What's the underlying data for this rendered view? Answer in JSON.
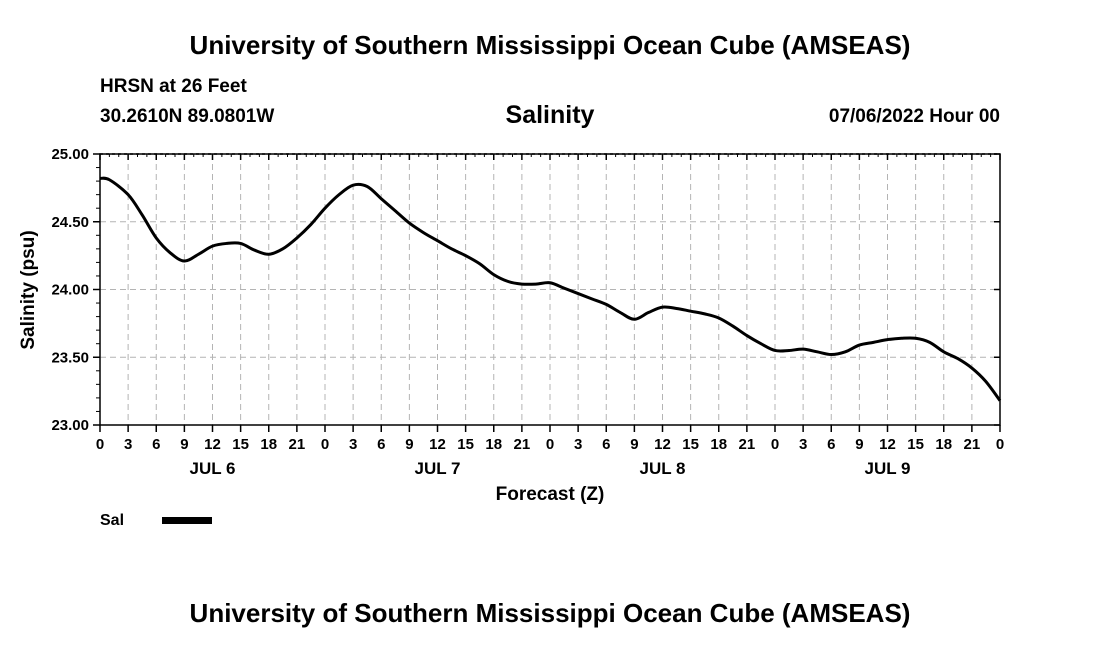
{
  "header": {
    "title": "University of Southern Mississippi Ocean Cube (AMSEAS)",
    "station": "HRSN at 26 Feet",
    "coordinates": "30.2610N  89.0801W",
    "chart_title": "Salinity",
    "timestamp": "07/06/2022 Hour 00"
  },
  "footer": {
    "title": "University of Southern Mississippi Ocean Cube (AMSEAS)"
  },
  "chart_data": {
    "type": "line",
    "title": "Salinity",
    "xlabel": "Forecast (Z)",
    "ylabel": "Salinity (psu)",
    "ylim": [
      23.0,
      25.0
    ],
    "yticks": [
      "23.00",
      "23.50",
      "24.00",
      "24.50",
      "25.00"
    ],
    "xlim": [
      0,
      96
    ],
    "xtick_labels": [
      "0",
      "3",
      "6",
      "9",
      "12",
      "15",
      "18",
      "21",
      "0",
      "3",
      "6",
      "9",
      "12",
      "15",
      "18",
      "21",
      "0",
      "3",
      "6",
      "9",
      "12",
      "15",
      "18",
      "21",
      "0",
      "3",
      "6",
      "9",
      "12",
      "15",
      "18",
      "21",
      "0"
    ],
    "day_labels": [
      {
        "label": "JUL 6",
        "hour": 12
      },
      {
        "label": "JUL 7",
        "hour": 36
      },
      {
        "label": "JUL 8",
        "hour": 60
      },
      {
        "label": "JUL 9",
        "hour": 84
      }
    ],
    "grid": true,
    "legend": "bottom-left",
    "series": [
      {
        "name": "Sal",
        "color": "#000000",
        "x": [
          0,
          1,
          3,
          4.5,
          6,
          7.5,
          9,
          10.5,
          12,
          13.5,
          15,
          16.5,
          18,
          19.5,
          21,
          22.5,
          24,
          25.5,
          27,
          28.5,
          30,
          31.5,
          33,
          34.5,
          36,
          37.5,
          39,
          40.5,
          42,
          43.5,
          45,
          46.5,
          48,
          49.5,
          51,
          52.5,
          54,
          55.5,
          57,
          58.5,
          60,
          61.5,
          63,
          64.5,
          66,
          67.5,
          69,
          70.5,
          72,
          73.5,
          75,
          76.5,
          78,
          79.5,
          81,
          82.5,
          84,
          85.5,
          87,
          88.5,
          90,
          91.5,
          93,
          94.5,
          96
        ],
        "values": [
          24.82,
          24.81,
          24.7,
          24.55,
          24.38,
          24.27,
          24.21,
          24.26,
          24.32,
          24.34,
          24.34,
          24.29,
          24.26,
          24.3,
          24.38,
          24.48,
          24.6,
          24.7,
          24.77,
          24.76,
          24.67,
          24.58,
          24.49,
          24.42,
          24.36,
          24.3,
          24.25,
          24.19,
          24.11,
          24.06,
          24.04,
          24.04,
          24.05,
          24.01,
          23.97,
          23.93,
          23.89,
          23.83,
          23.78,
          23.83,
          23.87,
          23.86,
          23.84,
          23.82,
          23.79,
          23.73,
          23.66,
          23.6,
          23.55,
          23.55,
          23.56,
          23.54,
          23.52,
          23.54,
          23.59,
          23.61,
          23.63,
          23.64,
          23.64,
          23.61,
          23.54,
          23.49,
          23.42,
          23.32,
          23.18
        ]
      }
    ]
  }
}
